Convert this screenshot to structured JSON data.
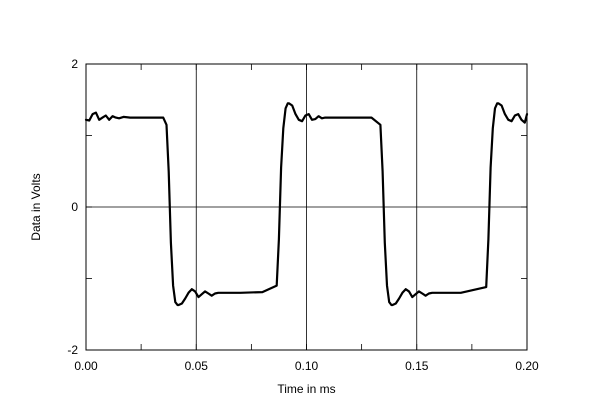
{
  "chart_data": {
    "type": "line",
    "title": "",
    "xlabel": "Time in ms",
    "ylabel": "Data in Volts",
    "xlim": [
      0,
      0.2
    ],
    "ylim": [
      -2,
      2
    ],
    "x_ticks": [
      0,
      0.05,
      0.1,
      0.15,
      0.2
    ],
    "x_tick_labels": [
      "0.00",
      "0.05",
      "0.10",
      "0.15",
      "0.20"
    ],
    "y_ticks": [
      -2,
      0,
      2
    ],
    "y_tick_labels": [
      "-2",
      "0",
      "2"
    ],
    "grid": true,
    "line_color": "#000000",
    "series": [
      {
        "x": [
          0.0,
          0.0015,
          0.003,
          0.0045,
          0.006,
          0.0075,
          0.009,
          0.0105,
          0.012,
          0.0135,
          0.015,
          0.017,
          0.02,
          0.025,
          0.03,
          0.035,
          0.0365,
          0.0375,
          0.0385,
          0.0395,
          0.0405,
          0.0415,
          0.042,
          0.0435,
          0.045,
          0.0465,
          0.048,
          0.0495,
          0.051,
          0.0525,
          0.054,
          0.0555,
          0.057,
          0.0585,
          0.06,
          0.063,
          0.07,
          0.08,
          0.0865,
          0.0875,
          0.0885,
          0.0895,
          0.0905,
          0.0915,
          0.092,
          0.0935,
          0.095,
          0.0965,
          0.098,
          0.0995,
          0.101,
          0.1025,
          0.104,
          0.1055,
          0.107,
          0.1085,
          0.11,
          0.115,
          0.12,
          0.125,
          0.1295,
          0.1335,
          0.1345,
          0.1355,
          0.1365,
          0.1375,
          0.1385,
          0.139,
          0.1405,
          0.142,
          0.1435,
          0.145,
          0.1465,
          0.148,
          0.1495,
          0.151,
          0.1525,
          0.154,
          0.1555,
          0.157,
          0.16,
          0.17,
          0.1815,
          0.1825,
          0.1835,
          0.1845,
          0.1855,
          0.1865,
          0.187,
          0.1885,
          0.19,
          0.1915,
          0.193,
          0.1945,
          0.196,
          0.1975,
          0.199,
          0.2
        ],
        "y": [
          1.22,
          1.21,
          1.3,
          1.32,
          1.22,
          1.25,
          1.28,
          1.22,
          1.27,
          1.25,
          1.24,
          1.26,
          1.25,
          1.25,
          1.25,
          1.25,
          1.15,
          0.5,
          -0.5,
          -1.1,
          -1.33,
          -1.37,
          -1.37,
          -1.35,
          -1.28,
          -1.2,
          -1.15,
          -1.18,
          -1.26,
          -1.22,
          -1.18,
          -1.21,
          -1.24,
          -1.21,
          -1.2,
          -1.2,
          -1.2,
          -1.19,
          -1.1,
          -0.45,
          0.55,
          1.1,
          1.38,
          1.45,
          1.45,
          1.42,
          1.3,
          1.22,
          1.2,
          1.28,
          1.3,
          1.22,
          1.23,
          1.27,
          1.24,
          1.25,
          1.25,
          1.25,
          1.25,
          1.25,
          1.25,
          1.15,
          0.5,
          -0.5,
          -1.1,
          -1.33,
          -1.37,
          -1.37,
          -1.35,
          -1.28,
          -1.2,
          -1.15,
          -1.18,
          -1.26,
          -1.22,
          -1.18,
          -1.21,
          -1.24,
          -1.21,
          -1.2,
          -1.2,
          -1.2,
          -1.12,
          -0.45,
          0.55,
          1.1,
          1.38,
          1.45,
          1.45,
          1.42,
          1.3,
          1.22,
          1.2,
          1.28,
          1.3,
          1.22,
          1.18,
          1.3
        ]
      }
    ]
  }
}
